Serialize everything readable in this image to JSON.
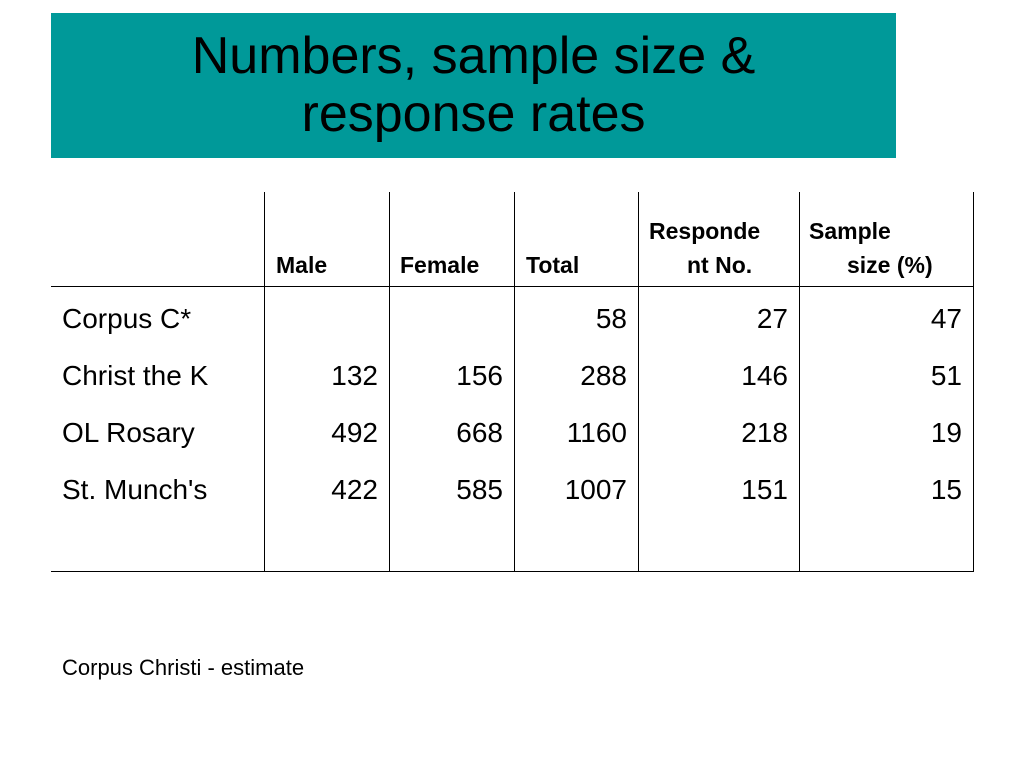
{
  "title": {
    "line1": "Numbers, sample size &",
    "line2": "response rates"
  },
  "colors": {
    "title_background": "#009999",
    "text": "#000000",
    "rule": "#000000"
  },
  "table": {
    "headers": {
      "male": "Male",
      "female": "Female",
      "total": "Total",
      "respondent_line1": "Responde",
      "respondent_line2": "nt No.",
      "sample_line1": "Sample",
      "sample_line2": "size (%)"
    },
    "rows": [
      {
        "name": "Corpus C*",
        "male": "",
        "female": "",
        "total": "58",
        "respondents": "27",
        "sample": "47"
      },
      {
        "name": "Christ the K",
        "male": "132",
        "female": "156",
        "total": "288",
        "respondents": "146",
        "sample": "51"
      },
      {
        "name": "OL Rosary",
        "male": "492",
        "female": "668",
        "total": "1160",
        "respondents": "218",
        "sample": "19"
      },
      {
        "name": "St. Munch's",
        "male": "422",
        "female": "585",
        "total": "1007",
        "respondents": "151",
        "sample": "15"
      }
    ]
  },
  "footnote": "Corpus Christi - estimate"
}
